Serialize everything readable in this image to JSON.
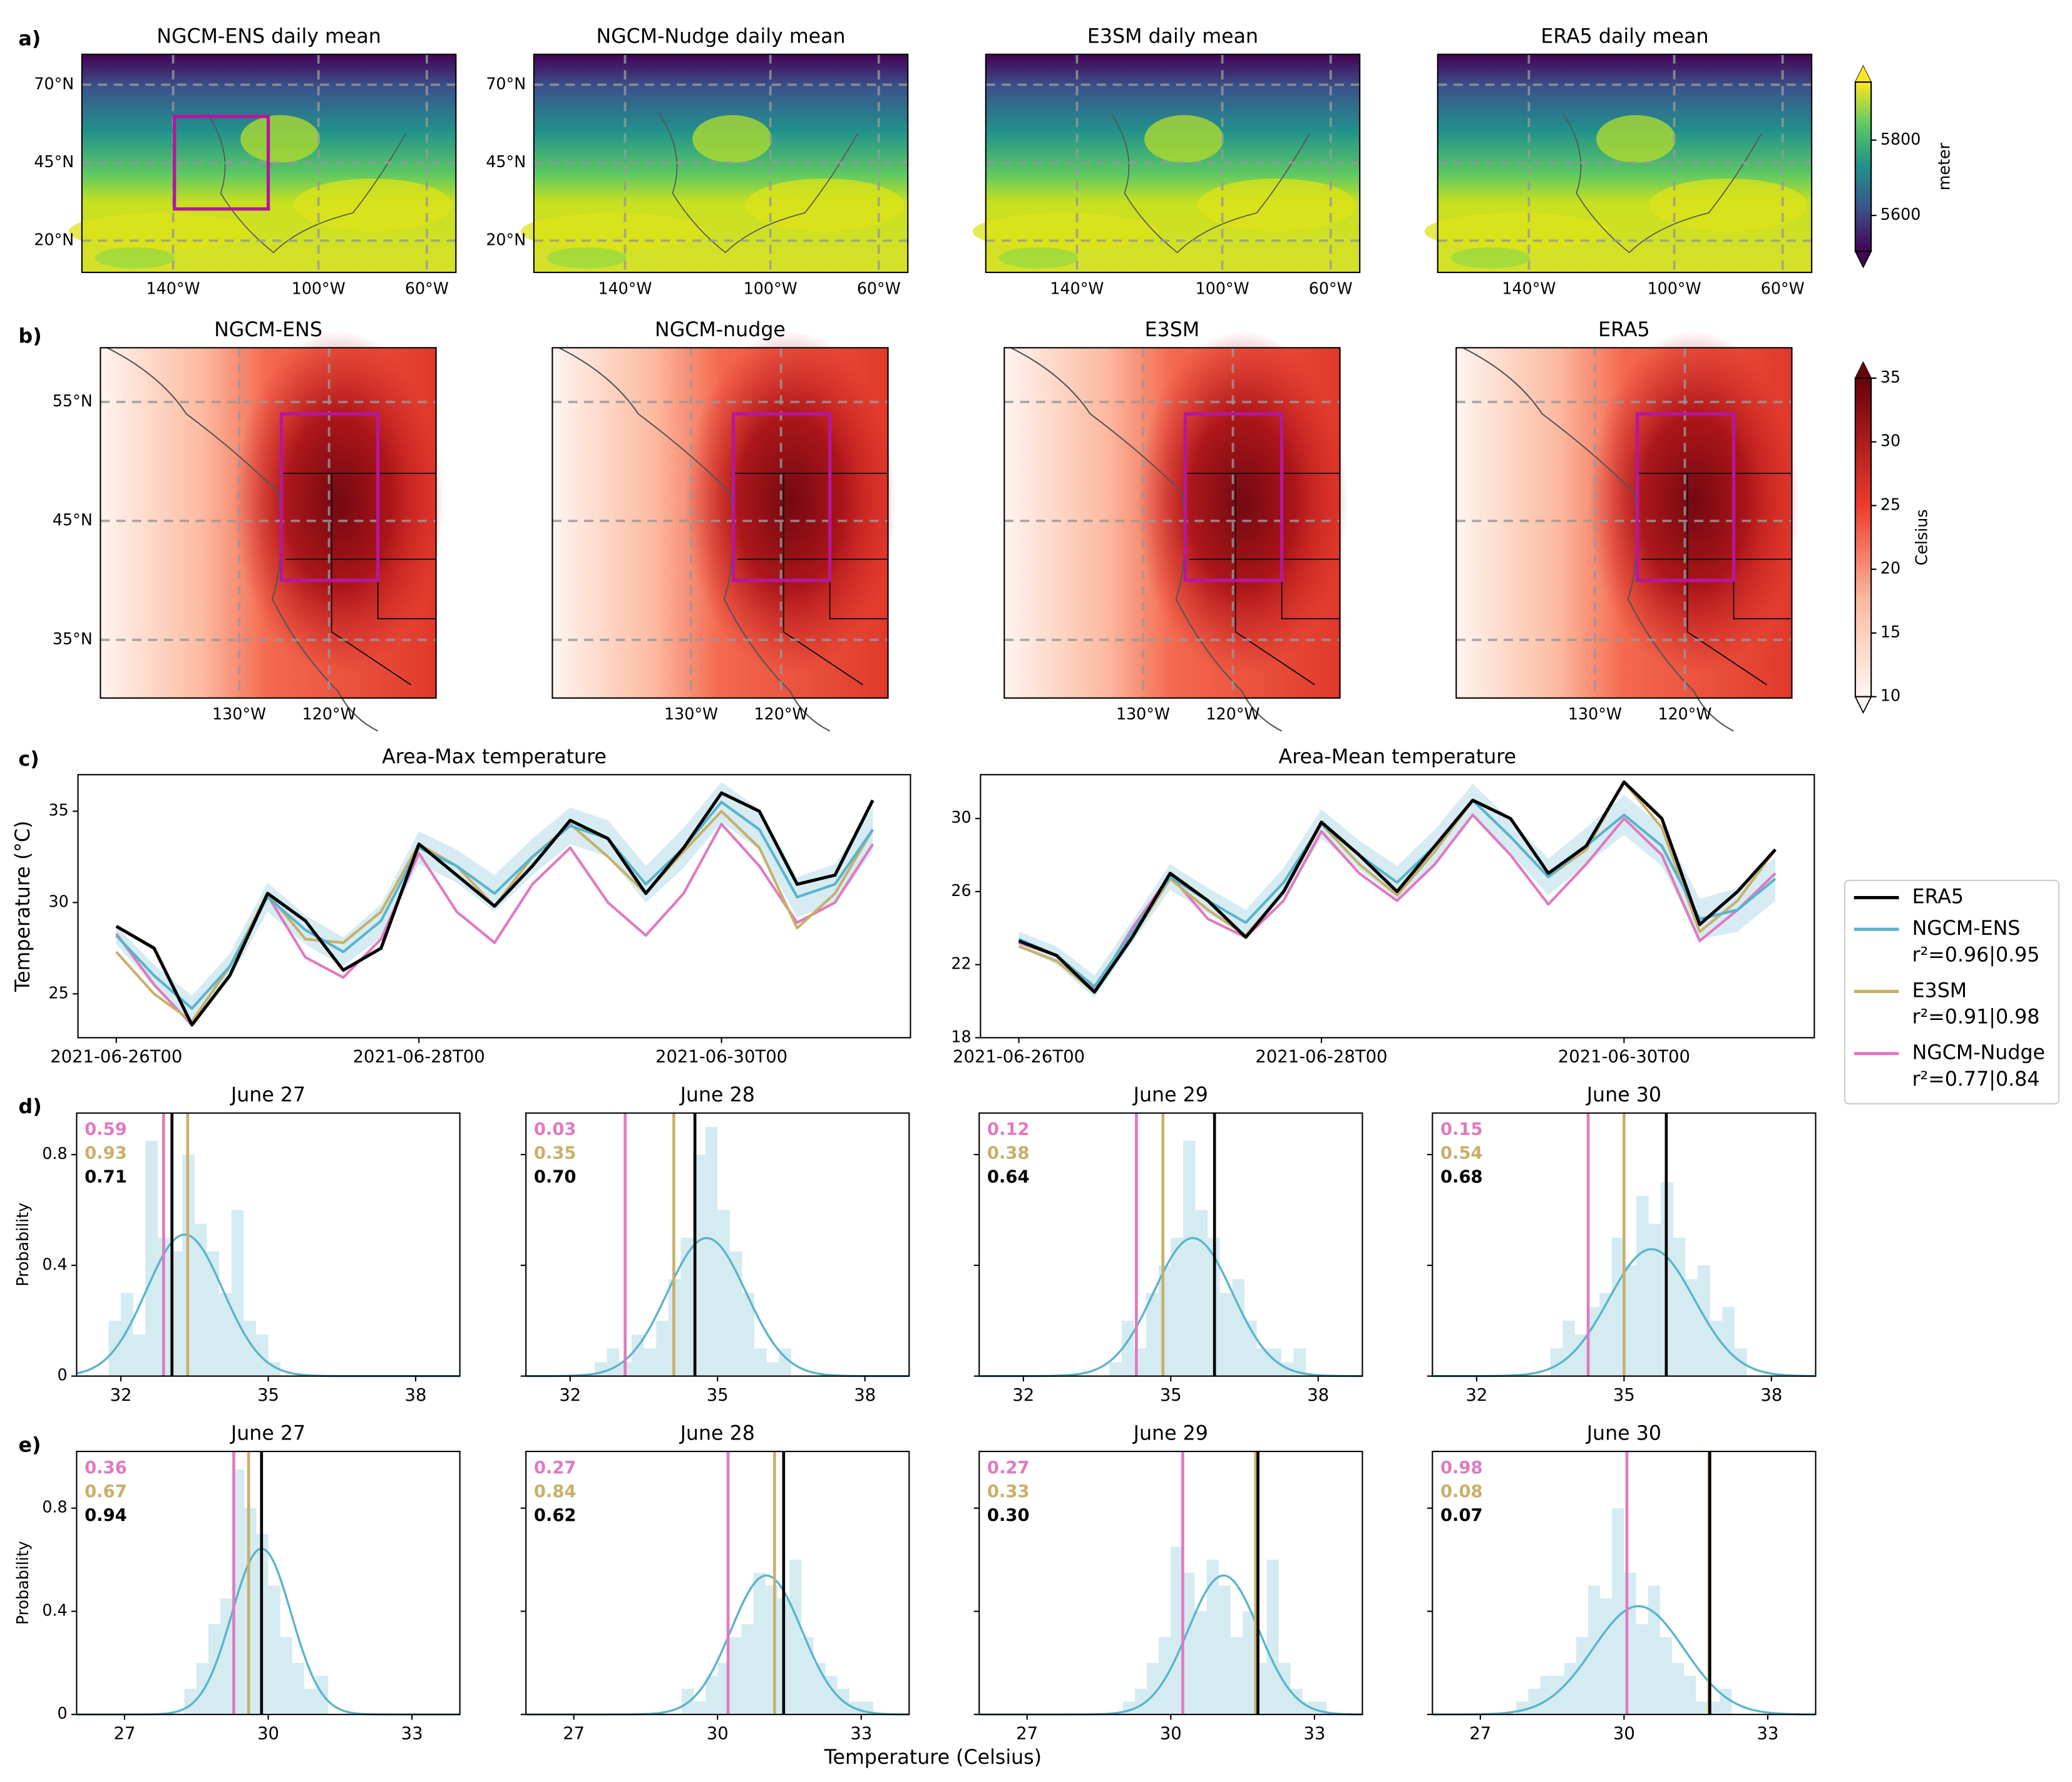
{
  "panel_labels": [
    "a)",
    "b)",
    "c)",
    "d)",
    "e)"
  ],
  "maps_a": {
    "titles": [
      "NGCM-ENS daily mean",
      "NGCM-Nudge daily mean",
      "E3SM daily mean",
      "ERA5 daily mean"
    ],
    "yticks": [
      "70°N",
      "45°N",
      "20°N"
    ],
    "xticks": [
      "140°W",
      "100°W",
      "60°W"
    ],
    "colorbar": {
      "label": "meter",
      "lim": [
        5505,
        5954
      ],
      "ticks": [
        5600,
        5800
      ]
    }
  },
  "maps_b": {
    "titles": [
      "NGCM-ENS",
      "NGCM-nudge",
      "E3SM",
      "ERA5"
    ],
    "yticks": [
      "55°N",
      "45°N",
      "35°N"
    ],
    "xticks": [
      "130°W",
      "120°W"
    ],
    "colorbar": {
      "label": "Celsius",
      "lim": [
        10,
        35
      ],
      "ticks": [
        10,
        15,
        20,
        25,
        30,
        35
      ]
    }
  },
  "xlabel": "Temperature (Celsius)",
  "chart_data": [
    {
      "type": "line",
      "title": "Area-Max temperature",
      "ylabel": "Temperature (°C)",
      "x": [
        "2021-06-26T00",
        "2021-06-26T06",
        "2021-06-26T12",
        "2021-06-26T18",
        "2021-06-27T00",
        "2021-06-27T06",
        "2021-06-27T12",
        "2021-06-27T18",
        "2021-06-28T00",
        "2021-06-28T06",
        "2021-06-28T12",
        "2021-06-28T18",
        "2021-06-29T00",
        "2021-06-29T06",
        "2021-06-29T12",
        "2021-06-29T18",
        "2021-06-30T00",
        "2021-06-30T06",
        "2021-06-30T12",
        "2021-06-30T18",
        "2021-07-01T00"
      ],
      "xticks": [
        "2021-06-26T00",
        "2021-06-28T00",
        "2021-06-30T00"
      ],
      "ylim": [
        22.6,
        37
      ],
      "yticks": [
        25,
        30,
        35
      ],
      "series": [
        {
          "name": "ERA5",
          "color": "#000000",
          "values": [
            28.7,
            27.5,
            23.3,
            26,
            30.5,
            29,
            26.3,
            27.5,
            33.2,
            31.5,
            29.8,
            32,
            34.5,
            33.5,
            30.5,
            33,
            36,
            35,
            31,
            31.5,
            35.6
          ]
        },
        {
          "name": "NGCM-ENS",
          "r2": "r²=0.96|0.95",
          "color": "#5ab4cc",
          "values": [
            28.2,
            26,
            24.2,
            26.5,
            30.3,
            28.5,
            27.3,
            29,
            33,
            32,
            30.5,
            32.5,
            34.2,
            33.5,
            31,
            33,
            35.5,
            34,
            30.3,
            31,
            34
          ],
          "spread": [
            0.5,
            0.6,
            0.7,
            0.7,
            0.8,
            0.8,
            0.8,
            0.9,
            0.9,
            0.9,
            1,
            1,
            1,
            1,
            1,
            1.1,
            1.1,
            1.1,
            1.1,
            1.1,
            1.2
          ]
        },
        {
          "name": "E3SM",
          "r2": "r²=0.91|0.98",
          "color": "#c8b06a",
          "values": [
            27.3,
            25,
            23.5,
            26.5,
            30.5,
            28,
            27.8,
            29.5,
            33.2,
            32,
            29.8,
            32.5,
            34.3,
            32.5,
            30.5,
            32.8,
            35,
            33,
            28.6,
            30.5,
            34
          ]
        },
        {
          "name": "NGCM-Nudge",
          "r2": "r²=0.77|0.84",
          "color": "#e07ac0",
          "values": [
            28.3,
            25.5,
            23.3,
            26,
            30.4,
            27,
            25.9,
            28,
            32.7,
            29.5,
            27.8,
            31,
            33,
            30,
            28.2,
            30.5,
            34.3,
            32,
            28.9,
            30,
            33.2
          ]
        }
      ]
    },
    {
      "type": "line",
      "title": "Area-Mean temperature",
      "x": [
        "2021-06-26T00",
        "2021-06-26T06",
        "2021-06-26T12",
        "2021-06-26T18",
        "2021-06-27T00",
        "2021-06-27T06",
        "2021-06-27T12",
        "2021-06-27T18",
        "2021-06-28T00",
        "2021-06-28T06",
        "2021-06-28T12",
        "2021-06-28T18",
        "2021-06-29T00",
        "2021-06-29T06",
        "2021-06-29T12",
        "2021-06-29T18",
        "2021-06-30T00",
        "2021-06-30T06",
        "2021-06-30T12",
        "2021-06-30T18",
        "2021-07-01T00"
      ],
      "xticks": [
        "2021-06-26T00",
        "2021-06-28T00",
        "2021-06-30T00"
      ],
      "ylim": [
        18,
        32.4
      ],
      "yticks": [
        18,
        22,
        26,
        30
      ],
      "series": [
        {
          "color": "#000000",
          "values": [
            23.3,
            22.5,
            20.5,
            23.5,
            27,
            25.5,
            23.5,
            26,
            29.8,
            28,
            26,
            28.5,
            31,
            30,
            27,
            28.5,
            32,
            30,
            24.2,
            26,
            28.3
          ]
        },
        {
          "color": "#5ab4cc",
          "values": [
            23.4,
            22.5,
            20.8,
            23.8,
            26.8,
            25.5,
            24.3,
            26.5,
            29.7,
            28,
            26.5,
            28.5,
            31,
            29,
            26.8,
            28.5,
            30.2,
            28.5,
            24.5,
            25,
            26.7
          ],
          "spread": [
            0.4,
            0.5,
            0.6,
            0.6,
            0.7,
            0.7,
            0.7,
            0.8,
            0.8,
            0.8,
            0.9,
            0.9,
            0.9,
            0.9,
            1,
            1,
            1.1,
            1.1,
            1.1,
            1.2,
            1.2
          ]
        },
        {
          "color": "#c8b06a",
          "values": [
            23,
            22.2,
            20.5,
            23.5,
            26.7,
            25,
            23.6,
            26,
            29.7,
            27.5,
            25.8,
            28.2,
            31,
            29,
            26.8,
            28.3,
            32,
            29.5,
            23.8,
            25.5,
            28.3
          ]
        },
        {
          "color": "#e07ac0",
          "values": [
            23.2,
            22.5,
            20.6,
            24,
            26.9,
            24.5,
            23.5,
            25.5,
            29.3,
            27,
            25.5,
            27.5,
            30.2,
            28,
            25.3,
            27.5,
            30,
            28,
            23.3,
            25,
            27
          ]
        }
      ]
    },
    {
      "type": "histogram",
      "title": "June 27",
      "ylabel": "Probability",
      "xlim": [
        31.1,
        38.9
      ],
      "xticks": [
        32,
        35,
        38
      ],
      "ylim": [
        0,
        0.95
      ],
      "yticks": [
        0,
        0.4,
        0.8
      ],
      "bar_color": "#d4ebf1",
      "bins": [
        31.75,
        32,
        32.25,
        32.5,
        32.75,
        33,
        33.25,
        33.5,
        33.75,
        34,
        34.25,
        34.5,
        34.75,
        35,
        35.25
      ],
      "counts": [
        0.2,
        0.3,
        0.15,
        0.85,
        0.5,
        0.45,
        0.8,
        0.55,
        0.45,
        0.3,
        0.6,
        0.2,
        0.15,
        0.05
      ],
      "fit": {
        "mean": 33.3,
        "sd": 0.78,
        "color": "#5ab4cc"
      },
      "lines": [
        {
          "color": "#e07ac0",
          "value": 32.87,
          "label": "0.59"
        },
        {
          "color": "#c8b06a",
          "value": 33.36,
          "label": "0.93"
        },
        {
          "color": "#000000",
          "value": 33.04,
          "label": "0.71"
        }
      ]
    },
    {
      "type": "histogram",
      "title": "June 28",
      "xlim": [
        31.1,
        38.9
      ],
      "xticks": [
        32,
        35,
        38
      ],
      "ylim": [
        0,
        0.95
      ],
      "yticks": [
        0,
        0.4,
        0.8
      ],
      "bar_color": "#d4ebf1",
      "bins": [
        32.5,
        32.75,
        33,
        33.25,
        33.5,
        33.75,
        34,
        34.25,
        34.5,
        34.75,
        35,
        35.25,
        35.5,
        35.75,
        36,
        36.25,
        36.5
      ],
      "counts": [
        0.05,
        0.1,
        0.05,
        0.15,
        0.1,
        0.2,
        0.35,
        0.5,
        0.8,
        0.9,
        0.6,
        0.45,
        0.3,
        0.1,
        0.05,
        0.1
      ],
      "fit": {
        "mean": 34.78,
        "sd": 0.8,
        "color": "#5ab4cc"
      },
      "lines": [
        {
          "color": "#e07ac0",
          "value": 33.12,
          "label": "0.03"
        },
        {
          "color": "#c8b06a",
          "value": 34.11,
          "label": "0.35"
        },
        {
          "color": "#000000",
          "value": 34.54,
          "label": "0.70"
        }
      ]
    },
    {
      "type": "histogram",
      "title": "June 29",
      "xlim": [
        31.1,
        38.9
      ],
      "xticks": [
        32,
        35,
        38
      ],
      "ylim": [
        0,
        0.95
      ],
      "yticks": [
        0,
        0.4,
        0.8
      ],
      "bar_color": "#d4ebf1",
      "bins": [
        33.75,
        34,
        34.25,
        34.5,
        34.75,
        35,
        35.25,
        35.5,
        35.75,
        36,
        36.25,
        36.5,
        36.75,
        37,
        37.25,
        37.5,
        37.75
      ],
      "counts": [
        0.05,
        0.2,
        0.1,
        0.3,
        0.4,
        0.5,
        0.85,
        0.6,
        0.5,
        0.3,
        0.35,
        0.2,
        0.1,
        0.1,
        0.05,
        0.1
      ],
      "fit": {
        "mean": 35.45,
        "sd": 0.8,
        "color": "#5ab4cc"
      },
      "lines": [
        {
          "color": "#e07ac0",
          "value": 34.3,
          "label": "0.12"
        },
        {
          "color": "#c8b06a",
          "value": 34.84,
          "label": "0.38"
        },
        {
          "color": "#000000",
          "value": 35.89,
          "label": "0.64"
        }
      ]
    },
    {
      "type": "histogram",
      "title": "June 30",
      "xlim": [
        31.1,
        38.9
      ],
      "xticks": [
        32,
        35,
        38
      ],
      "ylim": [
        0,
        0.95
      ],
      "yticks": [
        0,
        0.4,
        0.8
      ],
      "bar_color": "#d4ebf1",
      "bins": [
        33.5,
        33.75,
        34,
        34.25,
        34.5,
        34.75,
        35,
        35.25,
        35.5,
        35.75,
        36,
        36.25,
        36.5,
        36.75,
        37,
        37.25,
        37.5
      ],
      "counts": [
        0.1,
        0.2,
        0.15,
        0.25,
        0.3,
        0.5,
        0.4,
        0.65,
        0.55,
        0.7,
        0.5,
        0.35,
        0.4,
        0.2,
        0.25,
        0.1
      ],
      "fit": {
        "mean": 35.56,
        "sd": 0.87,
        "color": "#5ab4cc"
      },
      "lines": [
        {
          "color": "#e07ac0",
          "value": 34.27,
          "label": "0.15"
        },
        {
          "color": "#c8b06a",
          "value": 35,
          "label": "0.54"
        },
        {
          "color": "#000000",
          "value": 35.86,
          "label": "0.68"
        }
      ]
    },
    {
      "type": "histogram",
      "title": "June 27",
      "ylabel": "Probability",
      "xlim": [
        26,
        34
      ],
      "xticks": [
        27,
        30,
        33
      ],
      "ylim": [
        0,
        1.02
      ],
      "yticks": [
        0,
        0.4,
        0.8
      ],
      "bar_color": "#d4ebf1",
      "bins": [
        28.25,
        28.5,
        28.75,
        29,
        29.25,
        29.5,
        29.75,
        30,
        30.25,
        30.5,
        30.75,
        31,
        31.25
      ],
      "counts": [
        0.1,
        0.2,
        0.35,
        0.45,
        0.95,
        0.8,
        0.7,
        0.5,
        0.3,
        0.2,
        0.1,
        0.15
      ],
      "fit": {
        "mean": 29.86,
        "sd": 0.62,
        "color": "#5ab4cc"
      },
      "lines": [
        {
          "color": "#e07ac0",
          "value": 29.28,
          "label": "0.36"
        },
        {
          "color": "#c8b06a",
          "value": 29.59,
          "label": "0.67"
        },
        {
          "color": "#000000",
          "value": 29.86,
          "label": "0.94"
        }
      ]
    },
    {
      "type": "histogram",
      "title": "June 28",
      "xlim": [
        26,
        34
      ],
      "xticks": [
        27,
        30,
        33
      ],
      "ylim": [
        0,
        1.02
      ],
      "yticks": [
        0,
        0.4,
        0.8
      ],
      "bar_color": "#d4ebf1",
      "bins": [
        29.25,
        29.5,
        29.75,
        30,
        30.25,
        30.5,
        30.75,
        31,
        31.25,
        31.5,
        31.75,
        32,
        32.25,
        32.5,
        32.75,
        33,
        33.25
      ],
      "counts": [
        0.1,
        0.05,
        0.15,
        0.2,
        0.3,
        0.35,
        0.55,
        0.5,
        0.45,
        0.6,
        0.3,
        0.2,
        0.15,
        0.1,
        0.05,
        0.05
      ],
      "fit": {
        "mean": 31.02,
        "sd": 0.74,
        "color": "#5ab4cc"
      },
      "lines": [
        {
          "color": "#e07ac0",
          "value": 30.22,
          "label": "0.27"
        },
        {
          "color": "#c8b06a",
          "value": 31.19,
          "label": "0.84"
        },
        {
          "color": "#000000",
          "value": 31.38,
          "label": "0.62"
        }
      ]
    },
    {
      "type": "histogram",
      "title": "June 29",
      "xlim": [
        26,
        34
      ],
      "xticks": [
        27,
        30,
        33
      ],
      "ylim": [
        0,
        1.02
      ],
      "yticks": [
        0,
        0.4,
        0.8
      ],
      "bar_color": "#d4ebf1",
      "bins": [
        29,
        29.25,
        29.5,
        29.75,
        30,
        30.25,
        30.5,
        30.75,
        31,
        31.25,
        31.5,
        31.75,
        32,
        32.25,
        32.5,
        32.75,
        33,
        33.25
      ],
      "counts": [
        0.05,
        0.1,
        0.2,
        0.3,
        0.65,
        0.55,
        0.4,
        0.6,
        0.5,
        0.3,
        0.4,
        0.2,
        0.6,
        0.2,
        0.1,
        0.05,
        0.05
      ],
      "fit": {
        "mean": 31.1,
        "sd": 0.74,
        "color": "#5ab4cc"
      },
      "lines": [
        {
          "color": "#e07ac0",
          "value": 30.25,
          "label": "0.27"
        },
        {
          "color": "#c8b06a",
          "value": 31.77,
          "label": "0.33"
        },
        {
          "color": "#000000",
          "value": 31.82,
          "label": "0.30"
        }
      ]
    },
    {
      "type": "histogram",
      "title": "June 30",
      "xlim": [
        26,
        34
      ],
      "xticks": [
        27,
        30,
        33
      ],
      "ylim": [
        0,
        1.02
      ],
      "yticks": [
        0,
        0.4,
        0.8
      ],
      "bar_color": "#d4ebf1",
      "bins": [
        27.75,
        28,
        28.25,
        28.5,
        28.75,
        29,
        29.25,
        29.5,
        29.75,
        30,
        30.25,
        30.5,
        30.75,
        31,
        31.25,
        31.5,
        31.75,
        32,
        32.25
      ],
      "counts": [
        0.05,
        0.1,
        0.15,
        0.15,
        0.2,
        0.3,
        0.5,
        0.45,
        0.8,
        0.55,
        0.35,
        0.5,
        0.3,
        0.2,
        0.15,
        0.05,
        0.05,
        0.1
      ],
      "fit": {
        "mean": 30.3,
        "sd": 0.95,
        "color": "#5ab4cc"
      },
      "lines": [
        {
          "color": "#e07ac0",
          "value": 30.06,
          "label": "0.98"
        },
        {
          "color": "#c8b06a",
          "value": 31.77,
          "label": "0.08"
        },
        {
          "color": "#000000",
          "value": 31.79,
          "label": "0.07"
        }
      ]
    }
  ]
}
